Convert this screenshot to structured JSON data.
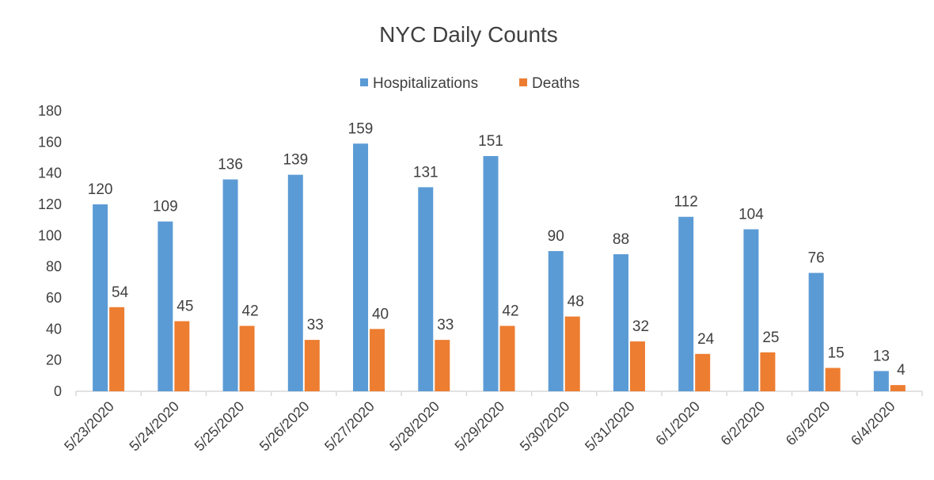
{
  "chart_data": {
    "type": "bar",
    "title": "NYC Daily Counts",
    "xlabel": "",
    "ylabel": "",
    "categories": [
      "5/23/2020",
      "5/24/2020",
      "5/25/2020",
      "5/26/2020",
      "5/27/2020",
      "5/28/2020",
      "5/29/2020",
      "5/30/2020",
      "5/31/2020",
      "6/1/2020",
      "6/2/2020",
      "6/3/2020",
      "6/4/2020"
    ],
    "series": [
      {
        "name": "Hospitalizations",
        "color": "#5b9bd5",
        "values": [
          120,
          109,
          136,
          139,
          159,
          131,
          151,
          90,
          88,
          112,
          104,
          76,
          13
        ]
      },
      {
        "name": "Deaths",
        "color": "#ed7d31",
        "values": [
          54,
          45,
          42,
          33,
          40,
          33,
          42,
          48,
          32,
          24,
          25,
          15,
          4
        ]
      }
    ],
    "ylim": [
      0,
      180
    ],
    "yticks": [
      0,
      20,
      40,
      60,
      80,
      100,
      120,
      140,
      160,
      180
    ],
    "grid": false,
    "legend_position": "top",
    "data_labels": true
  }
}
